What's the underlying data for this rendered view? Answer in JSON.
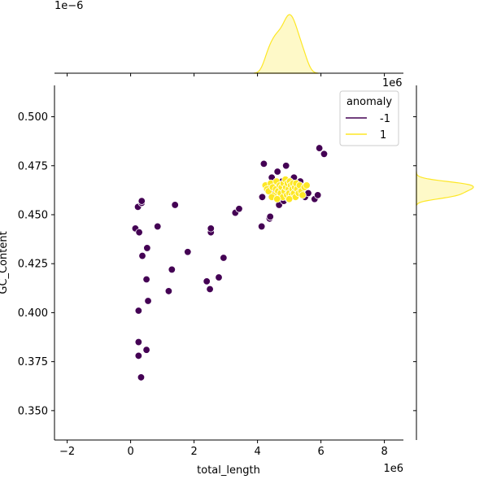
{
  "chart_data": {
    "type": "scatter",
    "title": "",
    "xlabel": "total_length",
    "ylabel": "GC_Content",
    "x_unit_offset": "1e6",
    "top_marginal_offset": "1e−6",
    "right_marginal_offset": "1e6",
    "xlim": [
      -2.4,
      8.6
    ],
    "ylim": [
      0.335,
      0.516
    ],
    "xticks": [
      "−2",
      "0",
      "2",
      "4",
      "6",
      "8"
    ],
    "yticks": [
      "0.350",
      "0.375",
      "0.400",
      "0.425",
      "0.450",
      "0.475",
      "0.500"
    ],
    "grid": false,
    "legend": {
      "title": "anomaly",
      "placement": "top-right",
      "entries": [
        {
          "label": "-1",
          "color": "#440154"
        },
        {
          "label": "1",
          "color": "#fde725"
        }
      ]
    },
    "series": [
      {
        "name": "-1",
        "color": "#440154",
        "x_units": "1e6 bp",
        "points": [
          [
            0.15,
            0.443
          ],
          [
            0.23,
            0.454
          ],
          [
            0.27,
            0.441
          ],
          [
            0.35,
            0.456
          ],
          [
            0.35,
            0.457
          ],
          [
            0.37,
            0.429
          ],
          [
            0.5,
            0.417
          ],
          [
            0.52,
            0.433
          ],
          [
            0.55,
            0.406
          ],
          [
            0.25,
            0.401
          ],
          [
            0.25,
            0.385
          ],
          [
            0.25,
            0.378
          ],
          [
            0.33,
            0.367
          ],
          [
            0.5,
            0.381
          ],
          [
            0.85,
            0.444
          ],
          [
            1.2,
            0.411
          ],
          [
            1.3,
            0.422
          ],
          [
            1.4,
            0.455
          ],
          [
            1.8,
            0.431
          ],
          [
            2.4,
            0.416
          ],
          [
            2.5,
            0.412
          ],
          [
            2.53,
            0.441
          ],
          [
            2.53,
            0.443
          ],
          [
            2.78,
            0.418
          ],
          [
            2.93,
            0.428
          ],
          [
            3.3,
            0.451
          ],
          [
            3.42,
            0.453
          ],
          [
            4.13,
            0.444
          ],
          [
            4.15,
            0.459
          ],
          [
            4.2,
            0.476
          ],
          [
            4.38,
            0.448
          ],
          [
            4.4,
            0.449
          ],
          [
            4.45,
            0.469
          ],
          [
            4.5,
            0.461
          ],
          [
            4.55,
            0.465
          ],
          [
            4.63,
            0.472
          ],
          [
            4.68,
            0.455
          ],
          [
            4.72,
            0.46
          ],
          [
            4.78,
            0.467
          ],
          [
            4.83,
            0.457
          ],
          [
            4.9,
            0.475
          ],
          [
            4.92,
            0.466
          ],
          [
            4.98,
            0.458
          ],
          [
            5.05,
            0.463
          ],
          [
            5.15,
            0.469
          ],
          [
            5.25,
            0.462
          ],
          [
            5.35,
            0.467
          ],
          [
            5.45,
            0.464
          ],
          [
            5.5,
            0.459
          ],
          [
            5.6,
            0.461
          ],
          [
            5.8,
            0.458
          ],
          [
            5.9,
            0.46
          ],
          [
            5.95,
            0.484
          ],
          [
            6.1,
            0.481
          ]
        ]
      },
      {
        "name": "1",
        "color": "#fde725",
        "x_units": "1e6 bp",
        "points": [
          [
            4.25,
            0.465
          ],
          [
            4.3,
            0.463
          ],
          [
            4.35,
            0.462
          ],
          [
            4.42,
            0.466
          ],
          [
            4.48,
            0.464
          ],
          [
            4.52,
            0.46
          ],
          [
            4.58,
            0.463
          ],
          [
            4.6,
            0.467
          ],
          [
            4.65,
            0.462
          ],
          [
            4.7,
            0.465
          ],
          [
            4.73,
            0.461
          ],
          [
            4.76,
            0.464
          ],
          [
            4.8,
            0.459
          ],
          [
            4.82,
            0.466
          ],
          [
            4.85,
            0.462
          ],
          [
            4.88,
            0.468
          ],
          [
            4.9,
            0.464
          ],
          [
            4.93,
            0.46
          ],
          [
            4.95,
            0.466
          ],
          [
            4.98,
            0.463
          ],
          [
            5.0,
            0.461
          ],
          [
            5.02,
            0.467
          ],
          [
            5.05,
            0.465
          ],
          [
            5.08,
            0.46
          ],
          [
            5.1,
            0.463
          ],
          [
            5.12,
            0.466
          ],
          [
            5.15,
            0.461
          ],
          [
            5.18,
            0.464
          ],
          [
            5.2,
            0.459
          ],
          [
            5.22,
            0.466
          ],
          [
            5.25,
            0.463
          ],
          [
            5.3,
            0.461
          ],
          [
            5.33,
            0.465
          ],
          [
            5.38,
            0.462
          ],
          [
            5.42,
            0.46
          ],
          [
            5.48,
            0.464
          ],
          [
            5.55,
            0.465
          ],
          [
            4.45,
            0.459
          ],
          [
            4.62,
            0.458
          ],
          [
            5.0,
            0.458
          ]
        ]
      }
    ]
  }
}
